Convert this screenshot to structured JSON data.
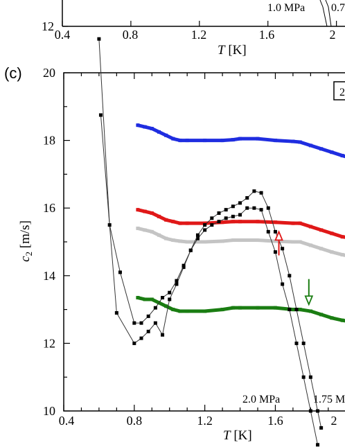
{
  "top_panel": {
    "x_ticks": [
      "0.4",
      "0.8",
      "1.2",
      "1.6",
      "2"
    ],
    "y_tick_bottom": "12",
    "xlabel_var": "T",
    "xlabel_unit": " [K]",
    "annotations": [
      "1.0 MPa",
      "0.7"
    ]
  },
  "chart_data": {
    "type": "line",
    "panel_label": "(c)",
    "legend_box_text": "2",
    "xlabel_var": "T",
    "xlabel_unit": " [K]",
    "ylabel_var": "c",
    "ylabel_sub": "2",
    "ylabel_unit": " [m/s]",
    "xlim": [
      0.4,
      2.05
    ],
    "ylim": [
      10,
      20
    ],
    "x_ticks": [
      0.4,
      0.8,
      1.2,
      1.6,
      2.0
    ],
    "x_tick_labels": [
      "0.4",
      "0.8",
      "1.2",
      "1.6",
      "2"
    ],
    "y_ticks": [
      10,
      12,
      14,
      16,
      18,
      20
    ],
    "y_tick_labels": [
      "10",
      "12",
      "14",
      "16",
      "18",
      "20"
    ],
    "annotations": [
      "2.0 MPa",
      "1.75 M"
    ],
    "colors": {
      "blue": "#1f2de0",
      "red": "#e01818",
      "gray": "#c4c4c4",
      "green": "#1a7d12",
      "black": "#000000"
    },
    "series": [
      {
        "color": "blue",
        "x": [
          0.82,
          0.86,
          0.9,
          0.94,
          0.98,
          1.02,
          1.06,
          1.1,
          1.2,
          1.3,
          1.36,
          1.4,
          1.5,
          1.6,
          1.7,
          1.74,
          1.8,
          1.86,
          1.92,
          1.98,
          2.05
        ],
        "y": [
          18.45,
          18.4,
          18.35,
          18.25,
          18.15,
          18.05,
          18.0,
          18.0,
          18.0,
          18.0,
          18.02,
          18.05,
          18.05,
          18.0,
          17.97,
          17.95,
          17.85,
          17.75,
          17.65,
          17.55,
          17.45
        ]
      },
      {
        "color": "red",
        "x": [
          0.82,
          0.86,
          0.9,
          0.94,
          0.98,
          1.02,
          1.06,
          1.1,
          1.2,
          1.3,
          1.36,
          1.4,
          1.5,
          1.6,
          1.7,
          1.74,
          1.8,
          1.86,
          1.92,
          1.98,
          2.05
        ],
        "y": [
          15.95,
          15.9,
          15.85,
          15.75,
          15.65,
          15.6,
          15.55,
          15.55,
          15.55,
          15.58,
          15.6,
          15.6,
          15.6,
          15.58,
          15.55,
          15.55,
          15.45,
          15.35,
          15.25,
          15.15,
          15.1
        ]
      },
      {
        "color": "gray",
        "x": [
          0.82,
          0.86,
          0.9,
          0.94,
          0.98,
          1.02,
          1.06,
          1.1,
          1.2,
          1.3,
          1.36,
          1.4,
          1.5,
          1.6,
          1.7,
          1.74,
          1.8,
          1.86,
          1.92,
          1.98,
          2.05
        ],
        "y": [
          15.4,
          15.35,
          15.3,
          15.2,
          15.1,
          15.05,
          15.02,
          15.0,
          15.0,
          15.02,
          15.05,
          15.05,
          15.05,
          15.02,
          15.0,
          15.0,
          14.9,
          14.8,
          14.7,
          14.62,
          14.55
        ]
      },
      {
        "color": "green",
        "x": [
          0.82,
          0.86,
          0.9,
          0.94,
          0.98,
          1.02,
          1.06,
          1.1,
          1.2,
          1.3,
          1.36,
          1.4,
          1.5,
          1.6,
          1.7,
          1.74,
          1.8,
          1.86,
          1.92,
          1.98,
          2.05
        ],
        "y": [
          13.35,
          13.3,
          13.3,
          13.2,
          13.1,
          13.0,
          12.95,
          12.95,
          12.95,
          13.0,
          13.05,
          13.05,
          13.05,
          13.05,
          13.0,
          13.0,
          12.95,
          12.85,
          12.75,
          12.68,
          12.62
        ]
      },
      {
        "color": "black",
        "x": [
          0.61,
          0.7,
          0.8,
          0.84,
          0.88,
          0.92,
          0.96,
          1.0,
          1.04,
          1.08,
          1.12,
          1.16,
          1.2,
          1.24,
          1.28,
          1.32,
          1.36,
          1.4,
          1.44,
          1.48,
          1.52,
          1.56,
          1.6,
          1.64,
          1.68,
          1.72,
          1.76,
          1.8,
          1.84
        ],
        "y": [
          18.75,
          12.9,
          12.0,
          12.15,
          12.35,
          12.6,
          12.25,
          13.3,
          13.75,
          14.25,
          14.75,
          15.1,
          15.35,
          15.5,
          15.6,
          15.7,
          15.75,
          15.8,
          16.0,
          16.0,
          15.95,
          15.3,
          14.7,
          13.75,
          13.0,
          12.0,
          11.0,
          10.0,
          9.0
        ]
      },
      {
        "color": "black",
        "x": [
          0.6,
          0.66,
          0.72,
          0.8,
          0.84,
          0.88,
          0.92,
          0.96,
          1.0,
          1.04,
          1.08,
          1.12,
          1.16,
          1.2,
          1.24,
          1.28,
          1.32,
          1.36,
          1.4,
          1.44,
          1.48,
          1.52,
          1.56,
          1.6,
          1.64,
          1.68,
          1.72,
          1.76,
          1.8,
          1.84,
          1.86
        ],
        "y": [
          21.0,
          15.5,
          14.1,
          12.6,
          12.6,
          12.8,
          13.05,
          13.35,
          13.5,
          13.85,
          14.3,
          14.75,
          15.2,
          15.5,
          15.7,
          15.85,
          15.95,
          16.05,
          16.15,
          16.3,
          16.5,
          16.45,
          16.0,
          15.3,
          14.8,
          14.0,
          13.0,
          12.0,
          11.0,
          10.0,
          9.5
        ]
      }
    ],
    "arrows": [
      {
        "color": "red",
        "x": 1.62,
        "y_from": 14.6,
        "y_to": 15.3
      },
      {
        "color": "green",
        "x": 1.79,
        "y_from": 13.9,
        "y_to": 13.15
      }
    ]
  }
}
